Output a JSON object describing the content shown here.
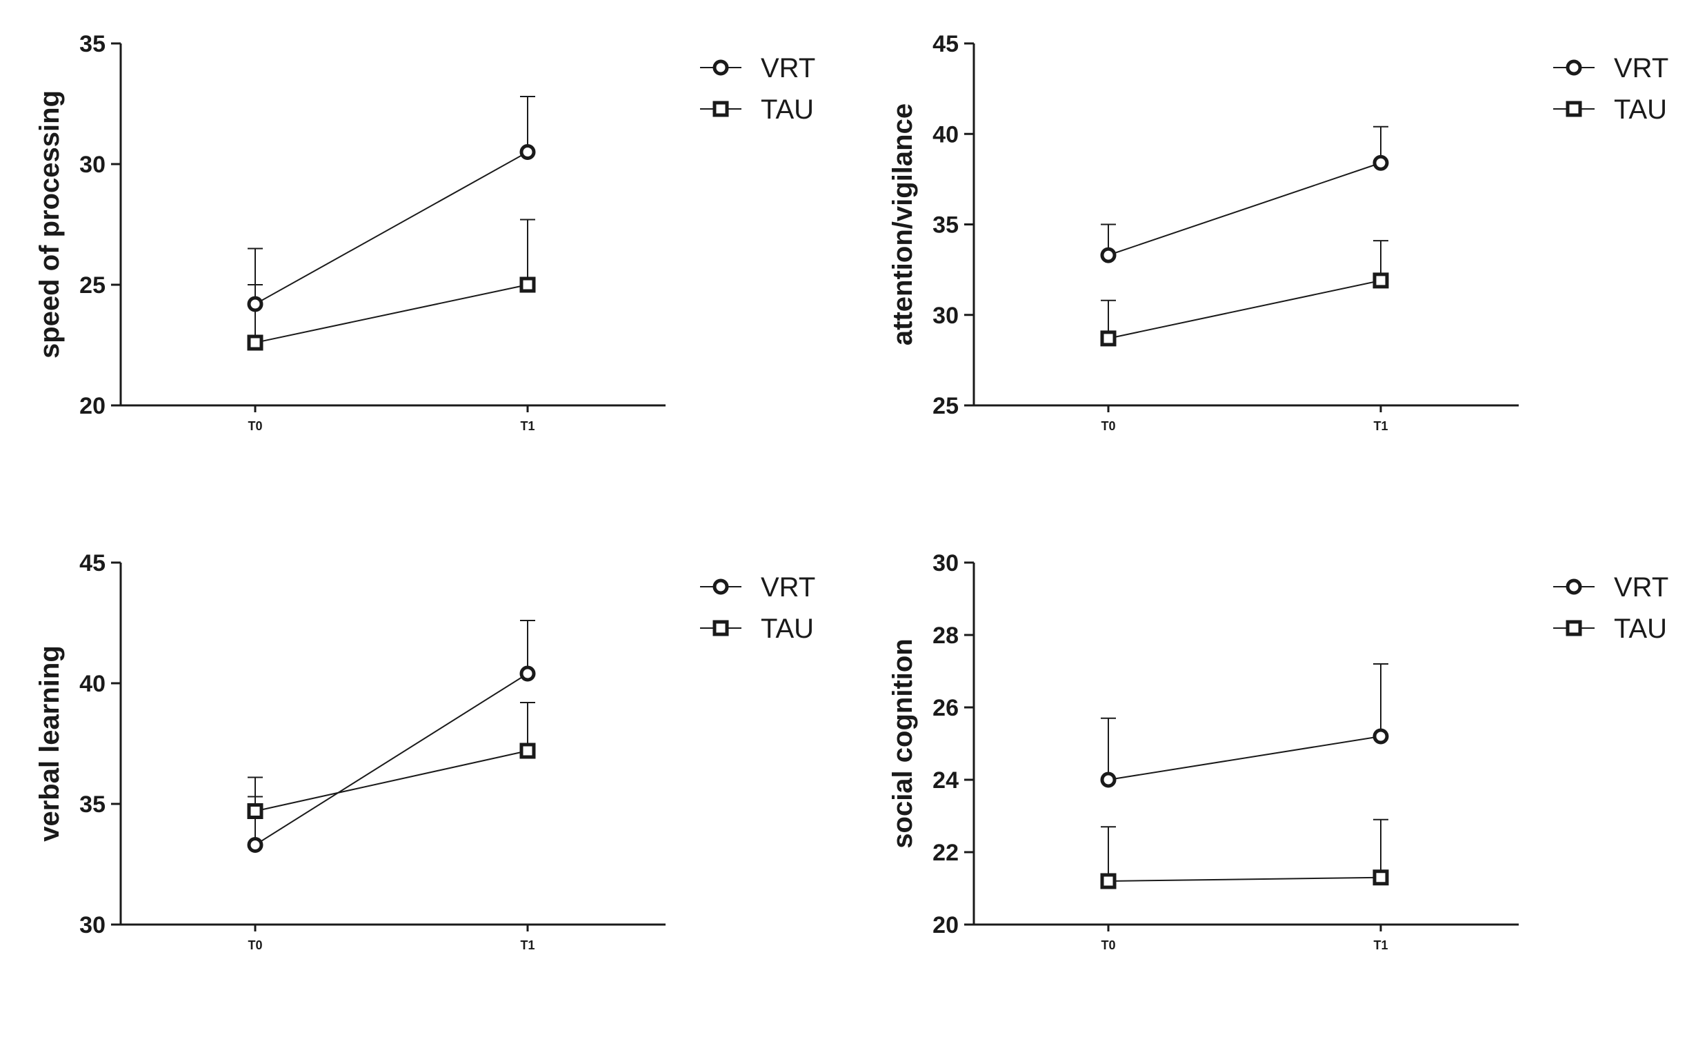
{
  "chart_data": [
    {
      "type": "line",
      "ylabel": "speed of processing",
      "categories": [
        "T0",
        "T1"
      ],
      "ylim": [
        20,
        35
      ],
      "yticks": [
        20,
        25,
        30,
        35
      ],
      "series": [
        {
          "name": "VRT",
          "marker": "circle",
          "values": [
            24.2,
            30.5
          ],
          "errors": [
            2.3,
            2.3
          ]
        },
        {
          "name": "TAU",
          "marker": "square",
          "values": [
            22.6,
            25.0
          ],
          "errors": [
            2.4,
            2.7
          ]
        }
      ],
      "legend": "top-right"
    },
    {
      "type": "line",
      "ylabel": "attention/vigilance",
      "categories": [
        "T0",
        "T1"
      ],
      "ylim": [
        25,
        45
      ],
      "yticks": [
        25,
        30,
        35,
        40,
        45
      ],
      "series": [
        {
          "name": "VRT",
          "marker": "circle",
          "values": [
            33.3,
            38.4
          ],
          "errors": [
            1.7,
            2.0
          ]
        },
        {
          "name": "TAU",
          "marker": "square",
          "values": [
            28.7,
            31.9
          ],
          "errors": [
            2.1,
            2.2
          ]
        }
      ],
      "legend": "top-right"
    },
    {
      "type": "line",
      "ylabel": "verbal learning",
      "categories": [
        "T0",
        "T1"
      ],
      "ylim": [
        30,
        45
      ],
      "yticks": [
        30,
        35,
        40,
        45
      ],
      "series": [
        {
          "name": "VRT",
          "marker": "circle",
          "values": [
            33.3,
            40.4
          ],
          "errors": [
            2.0,
            2.2
          ]
        },
        {
          "name": "TAU",
          "marker": "square",
          "values": [
            34.7,
            37.2
          ],
          "errors": [
            1.4,
            2.0
          ]
        }
      ],
      "legend": "top-right"
    },
    {
      "type": "line",
      "ylabel": "social cognition",
      "categories": [
        "T0",
        "T1"
      ],
      "ylim": [
        20,
        30
      ],
      "yticks": [
        20,
        22,
        24,
        26,
        28,
        30
      ],
      "series": [
        {
          "name": "VRT",
          "marker": "circle",
          "values": [
            24.0,
            25.2
          ],
          "errors": [
            1.7,
            2.0
          ]
        },
        {
          "name": "TAU",
          "marker": "square",
          "values": [
            21.2,
            21.3
          ],
          "errors": [
            1.5,
            1.6
          ]
        }
      ],
      "legend": "top-right"
    }
  ]
}
